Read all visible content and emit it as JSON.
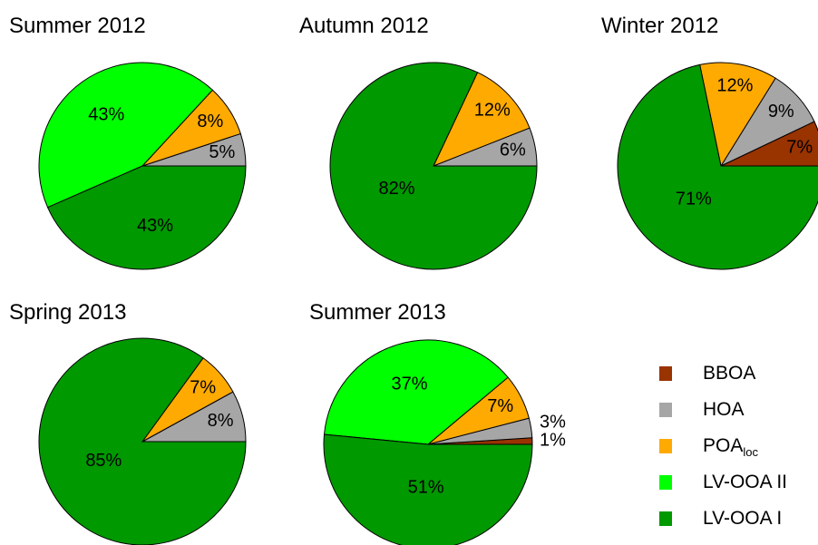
{
  "chart_data": [
    {
      "type": "pie",
      "title": "Summer 2012",
      "categories": [
        "HOA",
        "POA",
        "LV-OOA II",
        "LV-OOA I"
      ],
      "values": [
        5,
        8,
        43,
        43
      ],
      "value_labels": [
        "5%",
        "8%",
        "43%",
        "43%"
      ]
    },
    {
      "type": "pie",
      "title": "Autumn 2012",
      "categories": [
        "HOA",
        "POA",
        "LV-OOA I"
      ],
      "values": [
        6,
        12,
        82
      ],
      "value_labels": [
        "6%",
        "12%",
        "82%"
      ]
    },
    {
      "type": "pie",
      "title": "Winter 2012",
      "categories": [
        "BBOA",
        "HOA",
        "POA",
        "LV-OOA I"
      ],
      "values": [
        7,
        9,
        12,
        71
      ],
      "value_labels": [
        "7%",
        "9%",
        "12%",
        "71%"
      ]
    },
    {
      "type": "pie",
      "title": "Spring 2013",
      "categories": [
        "HOA",
        "POA",
        "LV-OOA I"
      ],
      "values": [
        8,
        7,
        85
      ],
      "value_labels": [
        "8%",
        "7%",
        "85%"
      ]
    },
    {
      "type": "pie",
      "title": "Summer 2013",
      "categories": [
        "BBOA",
        "HOA",
        "POA",
        "LV-OOA II",
        "LV-OOA I"
      ],
      "values": [
        1,
        3,
        7,
        37,
        51
      ],
      "value_labels": [
        "1%",
        "3%",
        "7%",
        "37%",
        "51%"
      ]
    }
  ],
  "legend": {
    "entries": [
      {
        "name": "BBOA",
        "color": "#993300"
      },
      {
        "name": "HOA",
        "color": "#a6a6a6"
      },
      {
        "name": "POA",
        "subscript": "loc",
        "color": "#ffaa00"
      },
      {
        "name": "LV-OOA II",
        "color": "#00ff00"
      },
      {
        "name": "LV-OOA I",
        "color": "#009900"
      }
    ]
  }
}
